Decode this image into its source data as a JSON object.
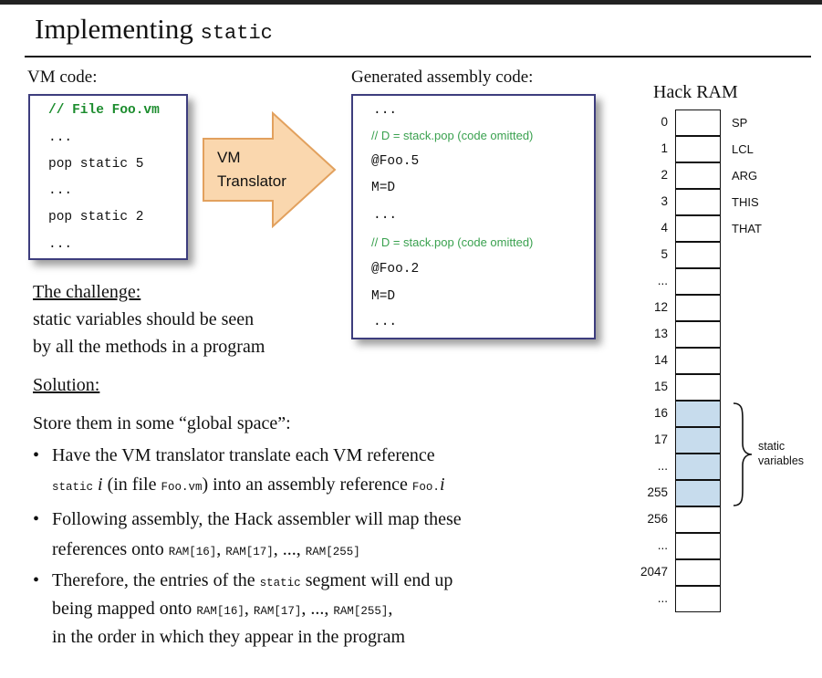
{
  "title": {
    "text": "Implementing",
    "code": "static"
  },
  "vm_code": {
    "label": "VM code:",
    "lines": [
      "// File Foo.vm",
      "...",
      "pop static 5",
      "...",
      "pop static 2",
      "..."
    ]
  },
  "translator": {
    "line1": "VM",
    "line2": "Translator"
  },
  "assembly": {
    "label": "Generated assembly code:",
    "lines": [
      "...",
      "// D = stack.pop (code omitted)",
      "@Foo.5",
      "M=D",
      "...",
      "// D = stack.pop (code omitted)",
      "@Foo.2",
      "M=D",
      "..."
    ]
  },
  "challenge": {
    "heading": "The challenge:",
    "line1": "static variables should be seen",
    "line2": "by all the methods in a program"
  },
  "solution": {
    "heading": "Solution:",
    "intro": "Store them in some “global space”:",
    "b1": {
      "l1": "Have the VM translator translate each VM reference",
      "code1": "static",
      "var": "i",
      "mid": "(in file",
      "code2": "Foo.vm",
      "end": ") into an assembly reference",
      "code3": "Foo.",
      "var2": "i"
    },
    "b2": {
      "l1": "Following assembly, the Hack assembler will map these",
      "pre": "references onto",
      "r16": "RAM[16]",
      "r17": "RAM[17]",
      "dots": ", ...,",
      "r255": "RAM[255]"
    },
    "b3": {
      "l1a": "Therefore, the entries of the",
      "code": "static",
      "l1b": "segment will end up",
      "l2": "being mapped onto",
      "r16": "RAM[16]",
      "r17": "RAM[17]",
      "dots": ", ...,",
      "r255": "RAM[255]",
      "l2end": ",",
      "l3": "in the order in which they appear in the program"
    },
    "bullet": "•"
  },
  "ram": {
    "title": "Hack RAM",
    "indices": [
      "0",
      "1",
      "2",
      "3",
      "4",
      "5",
      "...",
      "12",
      "13",
      "14",
      "15",
      "16",
      "17",
      "...",
      "255",
      "256",
      "...",
      "2047",
      "..."
    ],
    "registers": [
      "SP",
      "LCL",
      "ARG",
      "THIS",
      "THAT"
    ],
    "static_label_1": "static",
    "static_label_2": "variables"
  },
  "colors": {
    "code_border": "#3d3d7d",
    "arrow_fill": "#fad7ae",
    "arrow_stroke": "#e2a15e",
    "static_cell": "#c7dced",
    "comment_green": "#1b8c2d"
  }
}
